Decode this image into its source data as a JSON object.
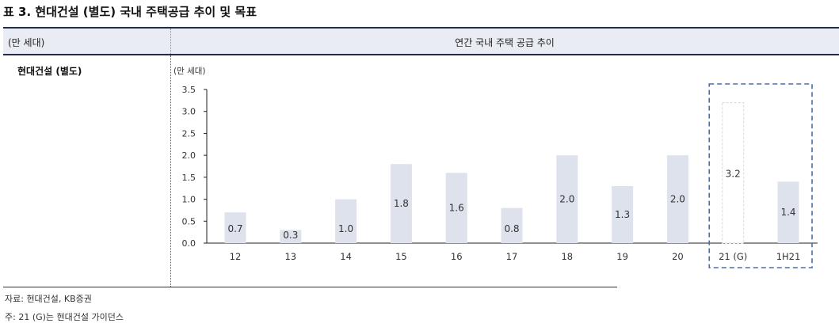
{
  "title": "표 3. 현대건설 (별도) 국내 주택공급 추이 및 목표",
  "header": {
    "left": "(만 세대)",
    "right": "연간 국내 주택 공급 추이"
  },
  "row_label": "현대건설 (별도)",
  "notes": [
    "자료: 현대건설, KB증권",
    "주: 21 (G)는 현대건설 가이던스"
  ],
  "colors": {
    "bar": "#dde2ec",
    "guidance_border": "#4a6fa5",
    "header_bg": "#e9ecf2",
    "rule": "#1e2b4a"
  },
  "chart_data": {
    "type": "bar",
    "unit_label": "(만 세대)",
    "ylim": [
      0,
      3.5
    ],
    "yticks": [
      "0.0",
      "0.5",
      "1.0",
      "1.5",
      "2.0",
      "2.5",
      "3.0",
      "3.5"
    ],
    "categories": [
      "12",
      "13",
      "14",
      "15",
      "16",
      "17",
      "18",
      "19",
      "20",
      "21 (G)",
      "1H21"
    ],
    "values": [
      0.7,
      0.3,
      1.0,
      1.8,
      1.6,
      0.8,
      2.0,
      1.3,
      2.0,
      3.2,
      1.4
    ],
    "labels": [
      "0.7",
      "0.3",
      "1.0",
      "1.8",
      "1.6",
      "0.8",
      "2.0",
      "1.3",
      "2.0",
      "3.2",
      "1.4"
    ],
    "highlighted_categories": [
      "21 (G)",
      "1H21"
    ],
    "grid": false,
    "legend": false
  }
}
